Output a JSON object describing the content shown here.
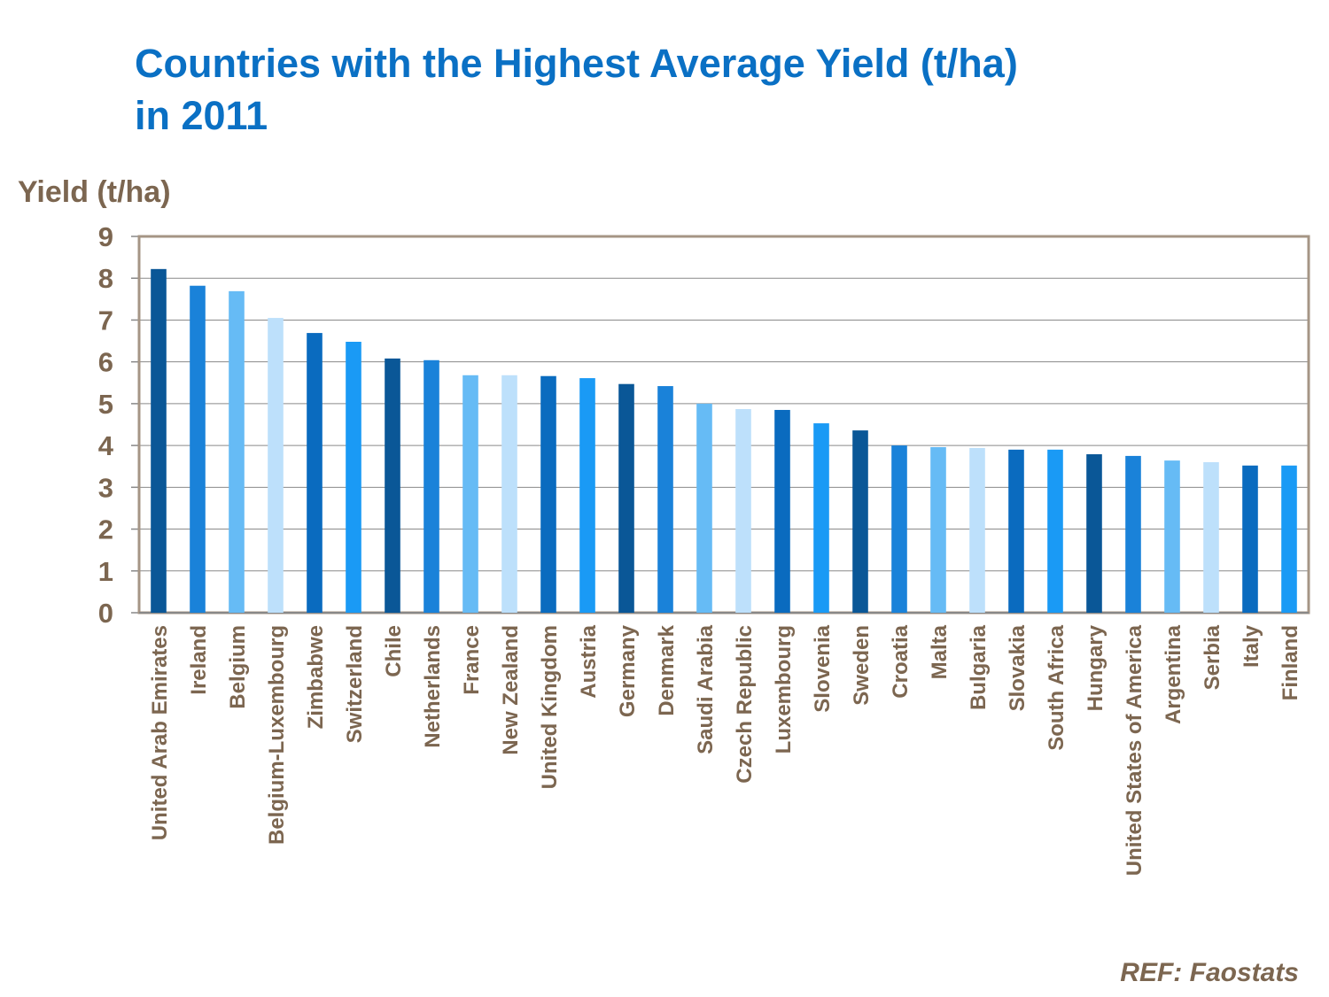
{
  "chart_data": {
    "type": "bar",
    "title": "Countries with the Highest Average Yield (t/ha)",
    "title_line2": "in 2011",
    "y_label": "Yield (t/ha)",
    "source": "REF: Faostats",
    "categories": [
      "United Arab Emirates",
      "Ireland",
      "Belgium",
      "Belgium-Luxembourg",
      "Zimbabwe",
      "Switzerland",
      "Chile",
      "Netherlands",
      "France",
      "New Zealand",
      "United Kingdom",
      "Austria",
      "Germany",
      "Denmark",
      "Saudi Arabia",
      "Czech Republic",
      "Luxembourg",
      "Slovenia",
      "Sweden",
      "Croatia",
      "Malta",
      "Bulgaria",
      "Slovakia",
      "South Africa",
      "Hungary",
      "United States of America",
      "Argentina",
      "Serbia",
      "Italy",
      "Finland"
    ],
    "values": [
      8.22,
      7.82,
      7.69,
      7.05,
      6.69,
      6.48,
      6.08,
      6.04,
      5.68,
      5.68,
      5.66,
      5.61,
      5.47,
      5.42,
      5.0,
      4.87,
      4.85,
      4.53,
      4.36,
      4.0,
      3.96,
      3.94,
      3.9,
      3.9,
      3.79,
      3.75,
      3.64,
      3.6,
      3.52,
      3.52
    ],
    "palette": [
      "#0a5797",
      "#1a82d9",
      "#66bbf5",
      "#bde0fb",
      "#0a6bbf",
      "#1a9af5"
    ],
    "ylim": [
      0,
      9
    ],
    "yticks": [
      0,
      1,
      2,
      3,
      4,
      5,
      6,
      7,
      8,
      9
    ],
    "grid": true
  }
}
